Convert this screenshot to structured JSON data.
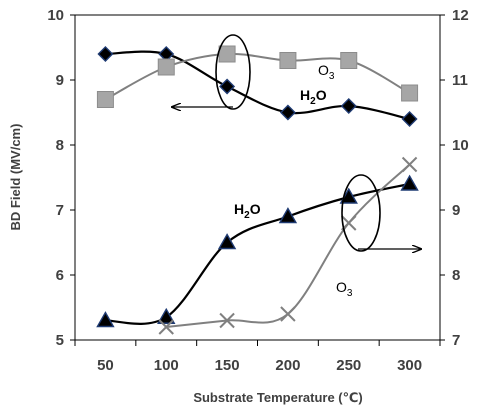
{
  "chart_data": {
    "type": "line",
    "xlabel": "Substrate Temperature (℃)",
    "ylabel": "BD Field (MV/cm)",
    "x": [
      50,
      100,
      150,
      200,
      250,
      300
    ],
    "x_ticks": [
      "50",
      "100",
      "150",
      "200",
      "250",
      "300"
    ],
    "ylim": [
      5,
      10
    ],
    "y_ticks": [
      "5",
      "6",
      "7",
      "8",
      "9",
      "10"
    ],
    "y2lim": [
      7,
      12
    ],
    "y2_ticks": [
      "7",
      "8",
      "9",
      "10",
      "11",
      "12"
    ],
    "grid": false,
    "colors": {
      "black": "#000000",
      "gray": "#808080",
      "marker_edge": "#1f3b73",
      "square": "#a6a6a6",
      "text": "#404040"
    },
    "series": [
      {
        "marker": "diamond",
        "axis": "left",
        "color": "#000000",
        "x": [
          50,
          100,
          150,
          200,
          250,
          300
        ],
        "y": [
          9.4,
          9.4,
          8.9,
          8.5,
          8.6,
          8.4
        ]
      },
      {
        "marker": "square",
        "axis": "right",
        "color": "#808080",
        "x": [
          50,
          100,
          150,
          200,
          250,
          300
        ],
        "y": [
          10.7,
          11.2,
          11.4,
          11.3,
          11.3,
          10.8
        ]
      },
      {
        "marker": "triangle",
        "axis": "left",
        "color": "#000000",
        "x": [
          50,
          100,
          150,
          200,
          250,
          300
        ],
        "y": [
          5.3,
          5.35,
          6.5,
          6.9,
          7.2,
          7.4
        ]
      },
      {
        "marker": "x",
        "axis": "right",
        "color": "#808080",
        "x": [
          100,
          150,
          200,
          250,
          300
        ],
        "y": [
          7.2,
          7.3,
          7.4,
          8.8,
          9.7
        ]
      }
    ],
    "annotations": [
      {
        "base": "O",
        "sub": "3",
        "color": "#808080"
      },
      {
        "base": "H",
        "sub": "2",
        "tail": "O",
        "color": "#000000"
      },
      {
        "base": "H",
        "sub": "2",
        "tail": "O",
        "color": "#000000"
      },
      {
        "base": "O",
        "sub": "3",
        "color": "#808080"
      }
    ]
  }
}
